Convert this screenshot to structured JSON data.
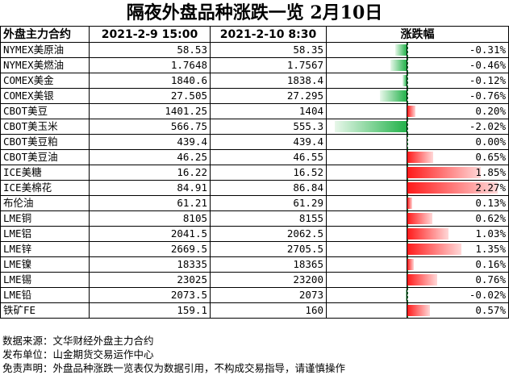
{
  "title": "隔夜外盘品种涨跌一览 2月10日",
  "headers": [
    "外盘主力合约",
    "2021-2-9 15:00",
    "2021-2-10 8:30",
    "涨跌幅"
  ],
  "chart_data": {
    "type": "table",
    "rows": [
      {
        "name": "NYMEX美原油",
        "prev": "58.53",
        "curr": "58.35",
        "pct_label": "-0.31%",
        "pct": -0.31
      },
      {
        "name": "NYMEX美燃油",
        "prev": "1.7648",
        "curr": "1.7567",
        "pct_label": "-0.46%",
        "pct": -0.46
      },
      {
        "name": "COMEX美金",
        "prev": "1840.6",
        "curr": "1838.4",
        "pct_label": "-0.12%",
        "pct": -0.12
      },
      {
        "name": "COMEX美银",
        "prev": "27.505",
        "curr": "27.295",
        "pct_label": "-0.76%",
        "pct": -0.76
      },
      {
        "name": "CBOT美豆",
        "prev": "1401.25",
        "curr": "1404",
        "pct_label": "0.20%",
        "pct": 0.2
      },
      {
        "name": "CBOT美玉米",
        "prev": "566.75",
        "curr": "555.3",
        "pct_label": "-2.02%",
        "pct": -2.02
      },
      {
        "name": "CBOT美豆粕",
        "prev": "439.4",
        "curr": "439.4",
        "pct_label": "0.00%",
        "pct": 0.0
      },
      {
        "name": "CBOT美豆油",
        "prev": "46.25",
        "curr": "46.55",
        "pct_label": "0.65%",
        "pct": 0.65
      },
      {
        "name": "ICE美糖",
        "prev": "16.22",
        "curr": "16.52",
        "pct_label": "1.85%",
        "pct": 1.85
      },
      {
        "name": "ICE美棉花",
        "prev": "84.91",
        "curr": "86.84",
        "pct_label": "2.27%",
        "pct": 2.27
      },
      {
        "name": "布伦油",
        "prev": "61.21",
        "curr": "61.29",
        "pct_label": "0.13%",
        "pct": 0.13
      },
      {
        "name": "LME铜",
        "prev": "8105",
        "curr": "8155",
        "pct_label": "0.62%",
        "pct": 0.62
      },
      {
        "name": "LME铝",
        "prev": "2041.5",
        "curr": "2062.5",
        "pct_label": "1.03%",
        "pct": 1.03
      },
      {
        "name": "LME锌",
        "prev": "2669.5",
        "curr": "2705.5",
        "pct_label": "1.35%",
        "pct": 1.35
      },
      {
        "name": "LME镍",
        "prev": "18335",
        "curr": "18365",
        "pct_label": "0.16%",
        "pct": 0.16
      },
      {
        "name": "LME锡",
        "prev": "23025",
        "curr": "23200",
        "pct_label": "0.76%",
        "pct": 0.76
      },
      {
        "name": "LME铅",
        "prev": "2073.5",
        "curr": "2073",
        "pct_label": "-0.02%",
        "pct": -0.02
      },
      {
        "name": "铁矿FE",
        "prev": "159.1",
        "curr": "160",
        "pct_label": "0.57%",
        "pct": 0.57
      }
    ],
    "colors": {
      "positive": "#ff1a1a",
      "negative": "#22b24a"
    }
  },
  "notes": [
    "数据来源：文华财经外盘主力合约",
    "发布单位：山金期货交易运作中心",
    "免责声明：外盘品种涨跌一览表仅为数据引用，不构成交易指导，请谨慎操作"
  ]
}
